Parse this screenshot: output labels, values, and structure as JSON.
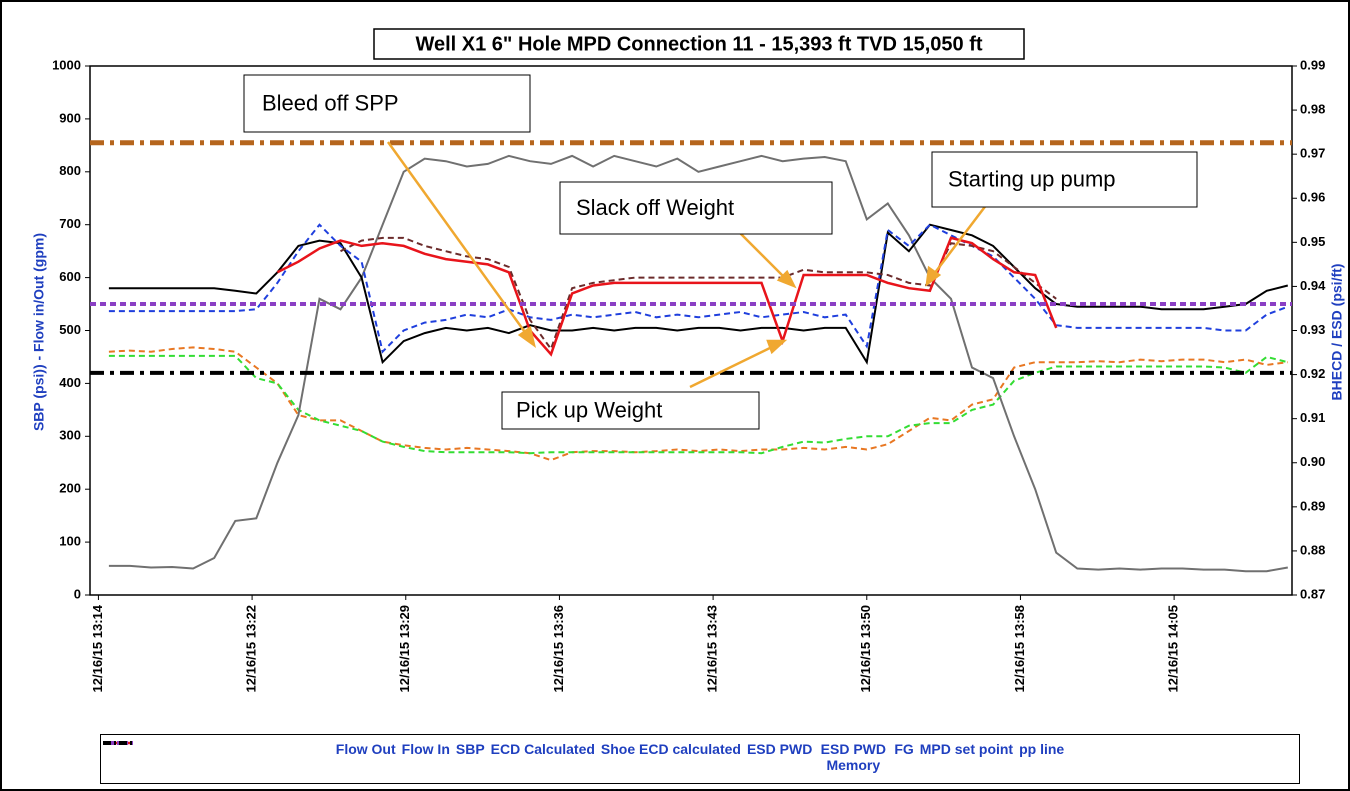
{
  "chart_data": {
    "type": "line",
    "title": "Well X1 6\" Hole MPD Connection 11 - 15,393 ft  TVD 15,050 ft",
    "ylabel": "SBP (psi)) - Flow in/Out (gpm)",
    "y2label": "BHECD / ESD  (psi/ft)",
    "xlim": [
      793.6,
      850.7
    ],
    "xticks": [
      {
        "value": 794,
        "label": "12/16/15 13:14"
      },
      {
        "value": 801.3,
        "label": "12/16/15 13:22"
      },
      {
        "value": 808.6,
        "label": "12/16/15 13:29"
      },
      {
        "value": 815.9,
        "label": "12/16/15 13:36"
      },
      {
        "value": 823.2,
        "label": "12/16/15 13:43"
      },
      {
        "value": 830.5,
        "label": "12/16/15 13:50"
      },
      {
        "value": 837.8,
        "label": "12/16/15 13:58"
      },
      {
        "value": 845.1,
        "label": "12/16/15 14:05"
      }
    ],
    "ylim": [
      0,
      1000
    ],
    "yticks": [
      0,
      100,
      200,
      300,
      400,
      500,
      600,
      700,
      800,
      900,
      1000
    ],
    "y2lim": [
      0.87,
      0.99
    ],
    "y2ticks": [
      0.87,
      0.88,
      0.89,
      {
        "value": 0.9,
        "label": "0.90"
      },
      0.91,
      0.92,
      0.93,
      0.94,
      0.95,
      0.96,
      0.97,
      0.98,
      0.99
    ],
    "x": [
      794.5,
      795.5,
      796.5,
      797.5,
      798.5,
      799.5,
      800.5,
      801.5,
      802.5,
      803.5,
      804.5,
      805.5,
      806.5,
      807.5,
      808.5,
      809.5,
      810.5,
      811.5,
      812.5,
      813.5,
      814.5,
      815.5,
      816.5,
      817.5,
      818.5,
      819.5,
      820.5,
      821.5,
      822.5,
      823.5,
      824.5,
      825.5,
      826.5,
      827.5,
      828.5,
      829.5,
      830.5,
      831.5,
      832.5,
      833.5,
      834.5,
      835.5,
      836.5,
      837.5,
      838.5,
      839.5,
      840.5,
      841.5,
      842.5,
      843.5,
      844.5,
      845.5,
      846.5,
      847.5,
      848.5,
      849.5,
      850.5
    ],
    "series": [
      {
        "name": "Flow Out",
        "color": "#e87722",
        "dash": "dashed",
        "width": 2,
        "values": [
          460,
          462,
          460,
          465,
          468,
          465,
          460,
          430,
          400,
          340,
          330,
          330,
          310,
          290,
          283,
          278,
          275,
          278,
          275,
          272,
          268,
          255,
          270,
          272,
          272,
          270,
          272,
          275,
          272,
          275,
          272,
          275,
          275,
          278,
          275,
          280,
          275,
          285,
          310,
          335,
          330,
          360,
          370,
          430,
          440,
          440,
          440,
          442,
          440,
          445,
          442,
          445,
          445,
          440,
          445,
          435,
          440
        ]
      },
      {
        "name": "Flow In",
        "color": "#33dd33",
        "dash": "dashed",
        "width": 2,
        "values": [
          452,
          452,
          452,
          452,
          452,
          452,
          452,
          410,
          400,
          350,
          330,
          320,
          310,
          290,
          280,
          272,
          270,
          270,
          270,
          270,
          268,
          270,
          270,
          270,
          270,
          270,
          270,
          270,
          270,
          270,
          270,
          268,
          280,
          290,
          288,
          295,
          300,
          300,
          320,
          325,
          325,
          350,
          360,
          405,
          420,
          432,
          432,
          432,
          432,
          432,
          432,
          432,
          432,
          430,
          420,
          450,
          440
        ]
      },
      {
        "name": "SBP",
        "color": "#707070",
        "dash": "solid",
        "width": 2,
        "values": [
          55,
          55,
          52,
          53,
          50,
          70,
          140,
          145,
          250,
          340,
          560,
          540,
          600,
          700,
          800,
          825,
          820,
          810,
          815,
          830,
          820,
          815,
          830,
          810,
          830,
          820,
          810,
          825,
          800,
          810,
          820,
          830,
          820,
          825,
          828,
          820,
          710,
          740,
          680,
          600,
          560,
          430,
          410,
          300,
          200,
          80,
          50,
          48,
          50,
          48,
          50,
          50,
          48,
          48,
          45,
          45,
          52
        ]
      },
      {
        "name": "ECD Calculated",
        "color": "#000000",
        "dash": "solid",
        "width": 2,
        "axis": "y2",
        "values": [
          0.9396,
          0.9396,
          0.9396,
          0.9396,
          0.9396,
          0.9396,
          0.939,
          0.9384,
          0.9432,
          0.9492,
          0.9504,
          0.9498,
          0.942,
          0.9228,
          0.9276,
          0.9294,
          0.9306,
          0.93,
          0.9306,
          0.9294,
          0.9312,
          0.93,
          0.93,
          0.9306,
          0.93,
          0.9306,
          0.9306,
          0.93,
          0.9306,
          0.9306,
          0.93,
          0.9306,
          0.9306,
          0.93,
          0.9306,
          0.9306,
          0.9228,
          0.9522,
          0.948,
          0.954,
          0.9528,
          0.9516,
          0.9492,
          0.9444,
          0.9396,
          0.936,
          0.9354,
          0.9354,
          0.9354,
          0.9354,
          0.9348,
          0.9348,
          0.9348,
          0.9354,
          0.936,
          0.939,
          0.9402
        ]
      },
      {
        "name": "Shoe ECD calculated",
        "color": "#1f3fdd",
        "dash": "dashed",
        "width": 2,
        "axis": "y2",
        "values": [
          0.9344,
          0.9344,
          0.9344,
          0.9344,
          0.9344,
          0.9344,
          0.9344,
          0.9348,
          0.9408,
          0.948,
          0.954,
          0.9492,
          0.9456,
          0.9252,
          0.93,
          0.9318,
          0.9324,
          0.9336,
          0.933,
          0.9348,
          0.933,
          0.9324,
          0.9336,
          0.933,
          0.9336,
          0.9342,
          0.933,
          0.9336,
          0.933,
          0.9336,
          0.9342,
          0.933,
          0.9336,
          0.9342,
          0.933,
          0.9336,
          0.9264,
          0.9528,
          0.9492,
          0.954,
          0.9516,
          0.9492,
          0.9468,
          0.942,
          0.9372,
          0.9312,
          0.9306,
          0.9306,
          0.9306,
          0.9306,
          0.9306,
          0.9306,
          0.9306,
          0.93,
          0.93,
          0.9336,
          0.9354
        ]
      },
      {
        "name": "ESD PWD",
        "color": "#6b2b2b",
        "dash": "dashed",
        "width": 2,
        "axis": "y2",
        "values": [
          null,
          null,
          null,
          null,
          null,
          null,
          null,
          null,
          null,
          null,
          null,
          0.948,
          0.9504,
          0.951,
          0.951,
          0.9492,
          0.948,
          0.9468,
          0.9462,
          0.9444,
          0.9324,
          0.9258,
          0.9396,
          0.9408,
          0.9414,
          0.942,
          0.942,
          0.942,
          0.942,
          0.942,
          0.942,
          0.942,
          0.942,
          0.9438,
          0.9432,
          0.9432,
          0.9432,
          0.9426,
          0.9408,
          0.9402,
          0.9498,
          0.9492,
          0.948,
          0.9444,
          0.9408,
          0.9372,
          null,
          null,
          null,
          null,
          null,
          null,
          null,
          null,
          null,
          null,
          null
        ]
      },
      {
        "name": "ESD PWD Memory",
        "color": "#e8141b",
        "dash": "solid",
        "width": 2.5,
        "axis": "y2",
        "values": [
          null,
          null,
          null,
          null,
          null,
          null,
          null,
          null,
          0.9432,
          0.9456,
          0.9486,
          0.9504,
          0.9492,
          0.9498,
          0.9492,
          0.9474,
          0.9462,
          0.9456,
          0.945,
          0.9432,
          0.93,
          0.9246,
          0.9384,
          0.9402,
          0.9408,
          0.9408,
          0.9408,
          0.9408,
          0.9408,
          0.9408,
          0.9408,
          0.9408,
          0.9276,
          0.9426,
          0.9426,
          0.9426,
          0.9426,
          0.9408,
          0.9396,
          0.939,
          0.951,
          0.9498,
          0.9462,
          0.9432,
          0.9426,
          0.9306,
          null,
          null,
          null,
          null,
          null,
          null,
          null,
          null,
          null,
          null,
          null
        ]
      },
      {
        "name": "FG",
        "color": "#b5651d",
        "dash": "dashdot",
        "width": 5,
        "axis": "y2",
        "value": 0.9726
      },
      {
        "name": "MPD set point",
        "color": "#8a3fc4",
        "dash": "dashed",
        "width": 4,
        "axis": "y2",
        "value": 0.936
      },
      {
        "name": "pp line",
        "color": "#000000",
        "dash": "dashdot",
        "width": 4,
        "axis": "y2",
        "value": 0.9204
      }
    ],
    "annotations": [
      {
        "text": "Bleed off SPP"
      },
      {
        "text": "Slack off Weight"
      },
      {
        "text": "Starting up pump"
      },
      {
        "text": "Pick up Weight"
      }
    ]
  }
}
